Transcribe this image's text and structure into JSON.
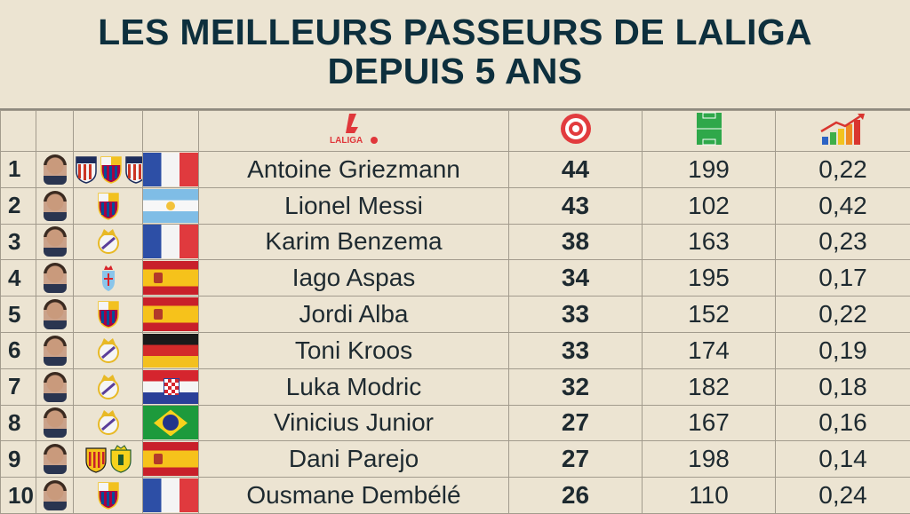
{
  "title": {
    "line1": "LES MEILLEURS PASSEURS DE LALIGA",
    "line2": "DEPUIS 5 ANS"
  },
  "header": {
    "league_logo_text": "LALIGA",
    "icons": [
      "laliga-logo-icon",
      "target-icon",
      "pitch-icon",
      "growth-chart-icon"
    ]
  },
  "colors": {
    "title": "#0d2f3d",
    "background": "#ece4d2",
    "laliga_red": "#e0373b"
  },
  "rows": [
    {
      "rank": "1",
      "name": "Antoine Griezmann",
      "assists": "44",
      "matches": "199",
      "ratio": "0,22",
      "flag": "fr",
      "clubs": [
        "atletico",
        "barcelona",
        "atletico"
      ]
    },
    {
      "rank": "2",
      "name": "Lionel Messi",
      "assists": "43",
      "matches": "102",
      "ratio": "0,42",
      "flag": "ar",
      "clubs": [
        "barcelona"
      ]
    },
    {
      "rank": "3",
      "name": "Karim Benzema",
      "assists": "38",
      "matches": "163",
      "ratio": "0,23",
      "flag": "fr",
      "clubs": [
        "real-madrid"
      ]
    },
    {
      "rank": "4",
      "name": "Iago Aspas",
      "assists": "34",
      "matches": "195",
      "ratio": "0,17",
      "flag": "es",
      "clubs": [
        "celta"
      ]
    },
    {
      "rank": "5",
      "name": "Jordi Alba",
      "assists": "33",
      "matches": "152",
      "ratio": "0,22",
      "flag": "es",
      "clubs": [
        "barcelona"
      ]
    },
    {
      "rank": "6",
      "name": "Toni Kroos",
      "assists": "33",
      "matches": "174",
      "ratio": "0,19",
      "flag": "de",
      "clubs": [
        "real-madrid"
      ]
    },
    {
      "rank": "7",
      "name": "Luka Modric",
      "assists": "32",
      "matches": "182",
      "ratio": "0,18",
      "flag": "hr",
      "clubs": [
        "real-madrid"
      ]
    },
    {
      "rank": "8",
      "name": "Vinicius Junior",
      "assists": "27",
      "matches": "167",
      "ratio": "0,16",
      "flag": "br",
      "clubs": [
        "real-madrid"
      ]
    },
    {
      "rank": "9",
      "name": "Dani Parejo",
      "assists": "27",
      "matches": "198",
      "ratio": "0,14",
      "flag": "es",
      "clubs": [
        "valencia",
        "villarreal"
      ]
    },
    {
      "rank": "10",
      "name": "Ousmane Dembélé",
      "assists": "26",
      "matches": "110",
      "ratio": "0,24",
      "flag": "fr",
      "clubs": [
        "barcelona"
      ]
    }
  ]
}
